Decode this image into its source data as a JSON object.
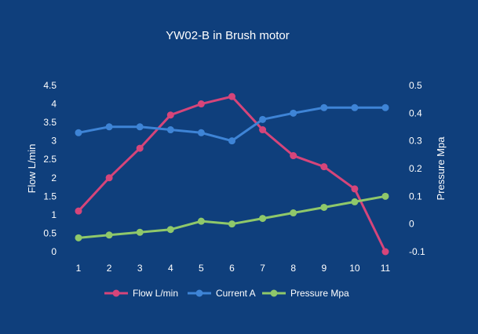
{
  "chart_data": {
    "type": "line",
    "title": "YW02-B in Brush motor",
    "x": [
      1,
      2,
      3,
      4,
      5,
      6,
      7,
      8,
      9,
      10,
      11
    ],
    "xlabel": "",
    "ylabel": "Flow  L/min",
    "y2label": "Pressure  Mpa",
    "ylim": [
      0,
      4.5
    ],
    "y2lim": [
      -0.1,
      0.5
    ],
    "yticks": [
      "0",
      "0.5",
      "1",
      "1.5",
      "2",
      "2.5",
      "3",
      "3.5",
      "4",
      "4.5"
    ],
    "y2ticks": [
      "-0.1",
      "0",
      "0.1",
      "0.2",
      "0.3",
      "0.4",
      "0.5"
    ],
    "grid": false,
    "legend": "bottom",
    "series": [
      {
        "name": "Flow L/min",
        "axis": "left",
        "color": "#d6457a",
        "values": [
          1.1,
          2.0,
          2.8,
          3.7,
          4.0,
          4.2,
          3.3,
          2.6,
          2.3,
          1.7,
          0.0
        ]
      },
      {
        "name": "Current A",
        "axis": "left",
        "color": "#3e84d6",
        "values": [
          3.22,
          3.38,
          3.38,
          3.3,
          3.22,
          3.0,
          3.58,
          3.75,
          3.9,
          3.9,
          3.9
        ]
      },
      {
        "name": "Pressure Mpa",
        "axis": "right",
        "color": "#8fc86a",
        "values": [
          -0.05,
          -0.04,
          -0.03,
          -0.02,
          0.01,
          0.0,
          0.02,
          0.04,
          0.06,
          0.08,
          0.1
        ]
      }
    ]
  }
}
